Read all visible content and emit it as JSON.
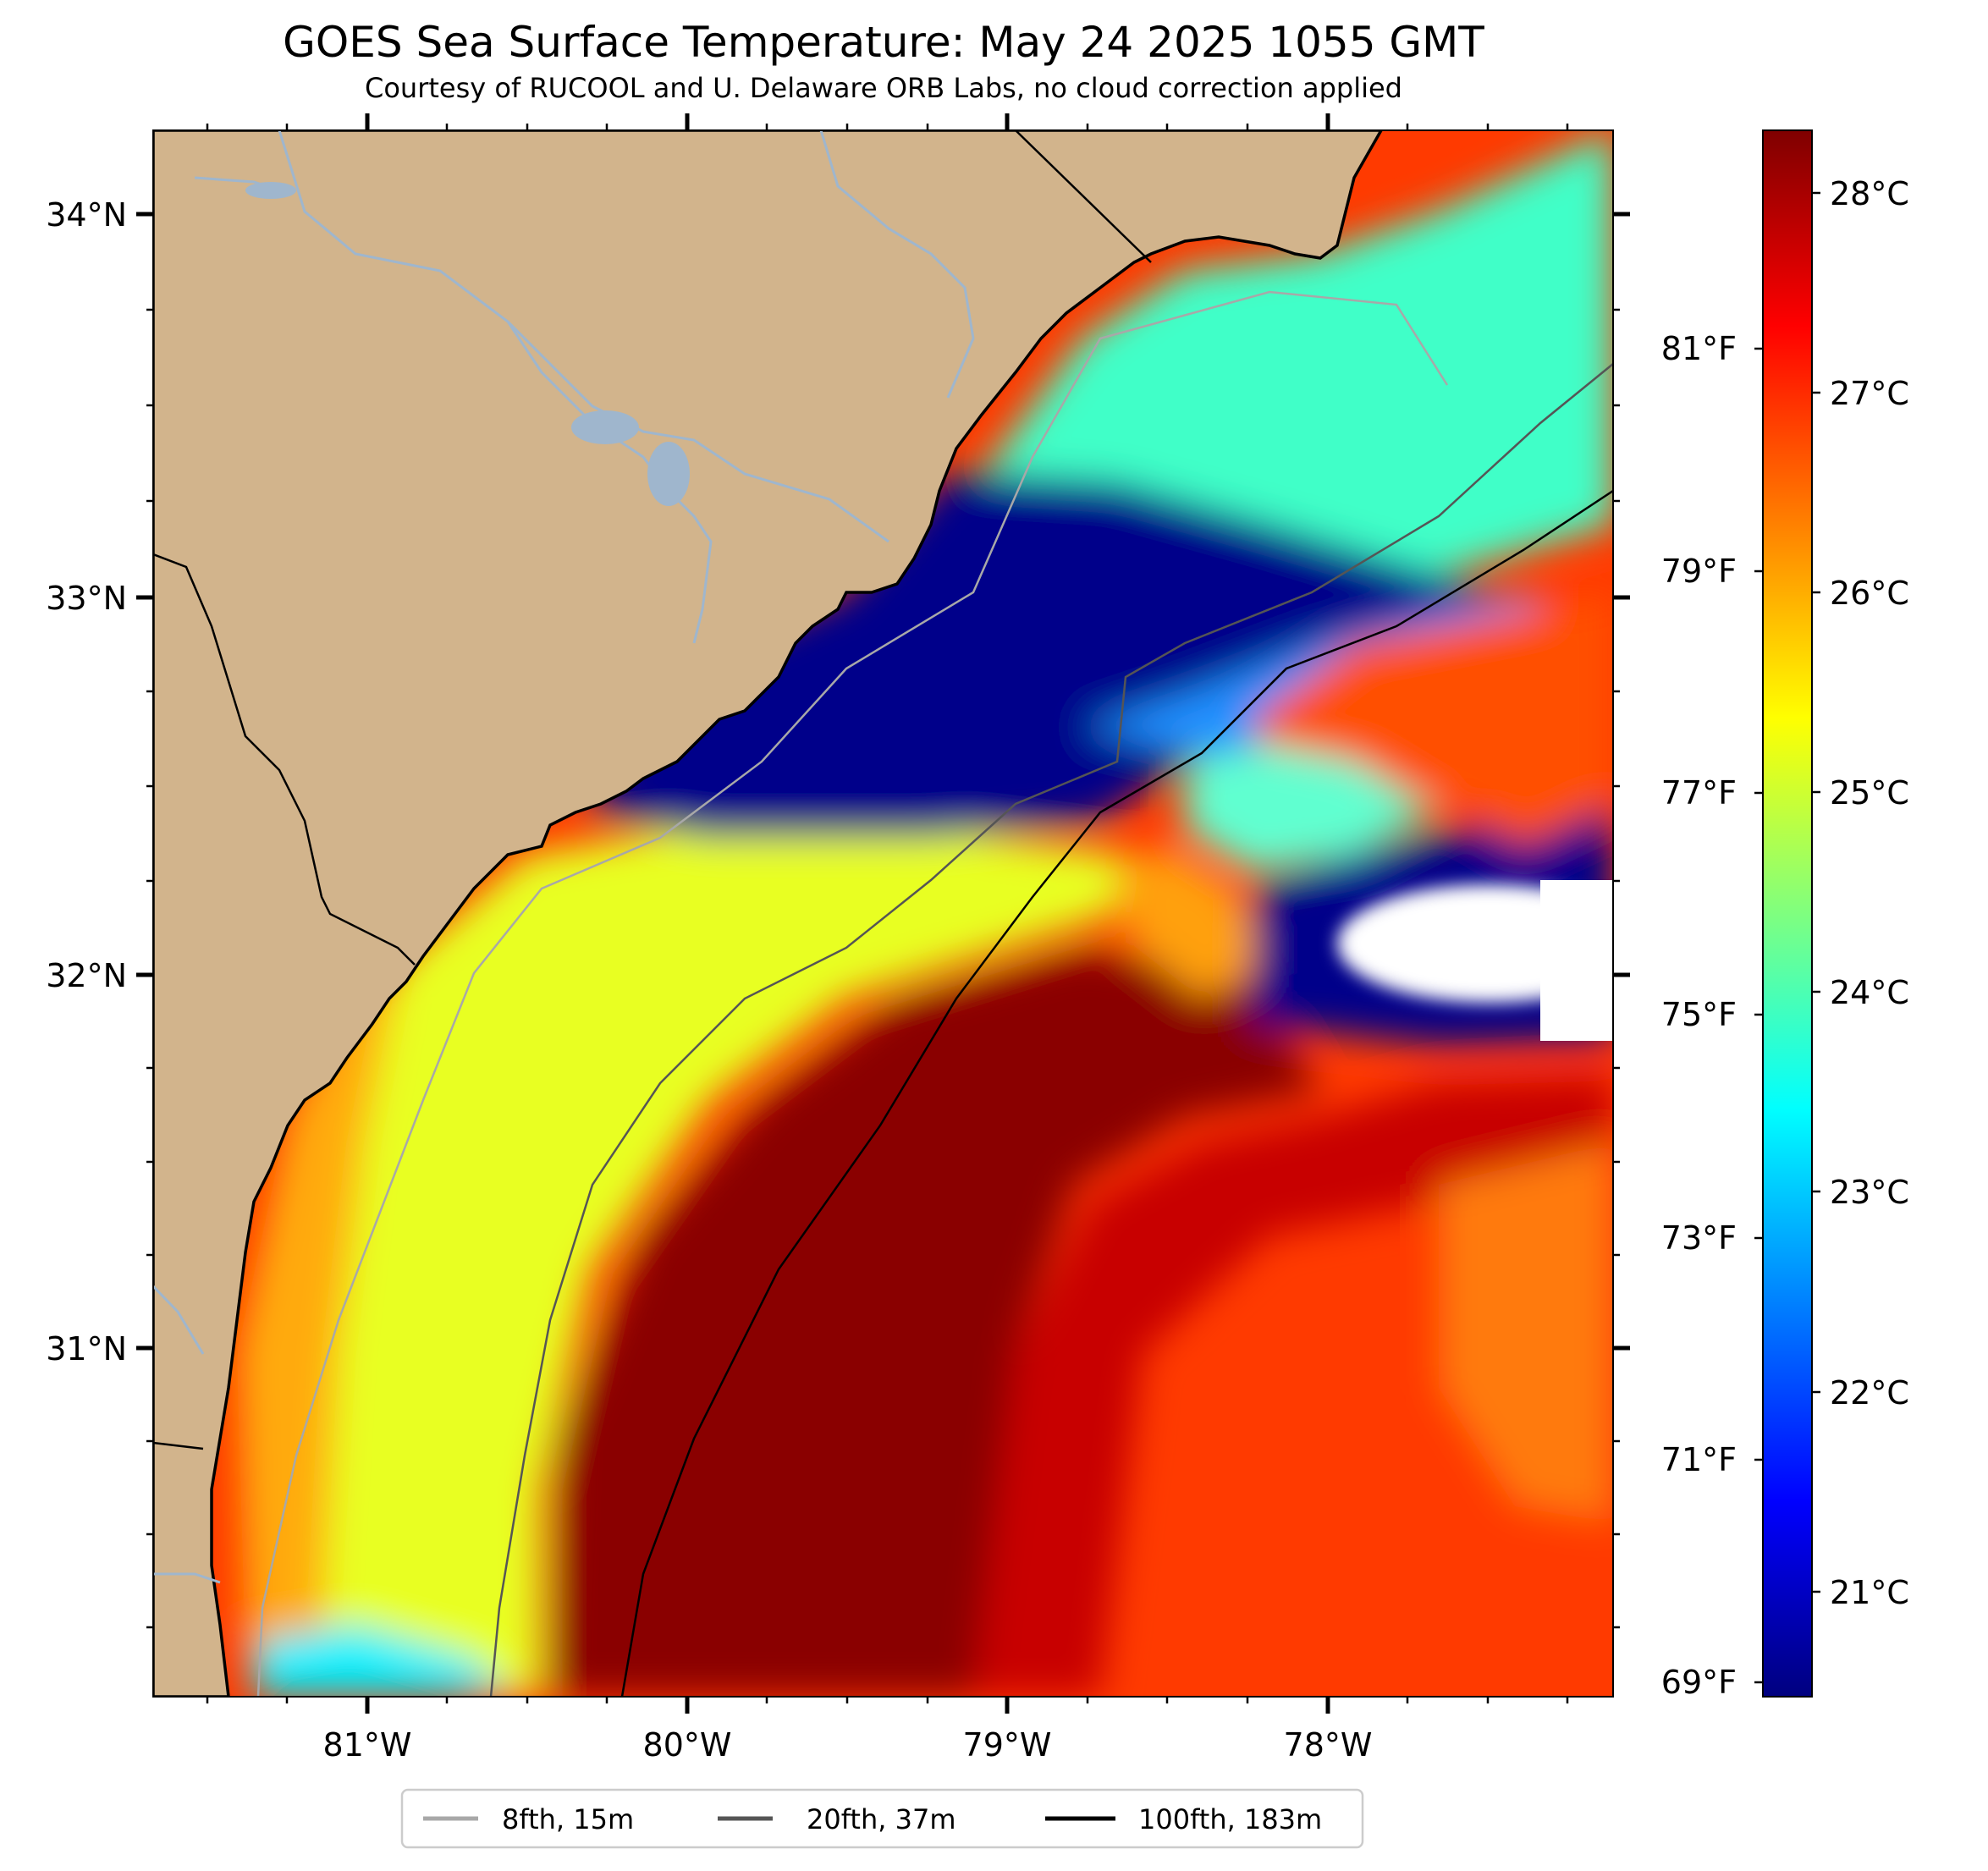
{
  "title": "GOES Sea Surface Temperature: May 24 2025 1055 GMT",
  "subtitle": "Courtesy of RUCOOL and U. Delaware ORB Labs, no cloud correction applied",
  "map": {
    "lat_labels": [
      "34°N",
      "33°N",
      "32°N",
      "31°N"
    ],
    "lon_labels": [
      "81°W",
      "80°W",
      "79°W",
      "78°W"
    ],
    "lat_range": [
      30.1,
      34.2
    ],
    "lon_range": [
      -81.65,
      -77.1
    ]
  },
  "colorbar": {
    "celsius_labels": [
      "28°C",
      "27°C",
      "26°C",
      "25°C",
      "24°C",
      "23°C",
      "22°C",
      "21°C"
    ],
    "fahrenheit_labels": [
      "81°F",
      "79°F",
      "77°F",
      "75°F",
      "73°F",
      "71°F",
      "69°F"
    ],
    "colormap": "jet",
    "colors": [
      "#00007f",
      "#0000ff",
      "#007fff",
      "#00ffff",
      "#7fff7f",
      "#ffff00",
      "#ff7f00",
      "#ff0000",
      "#7f0000"
    ]
  },
  "legend": {
    "items": [
      {
        "label": "8fth, 15m",
        "color": "#a8a8a8"
      },
      {
        "label": "20fth, 37m",
        "color": "#555555"
      },
      {
        "label": "100fth, 183m",
        "color": "#000000"
      }
    ]
  },
  "colors": {
    "land": "#d2b48c",
    "river": "#9fb6cd",
    "cloud": "#ffffff"
  }
}
